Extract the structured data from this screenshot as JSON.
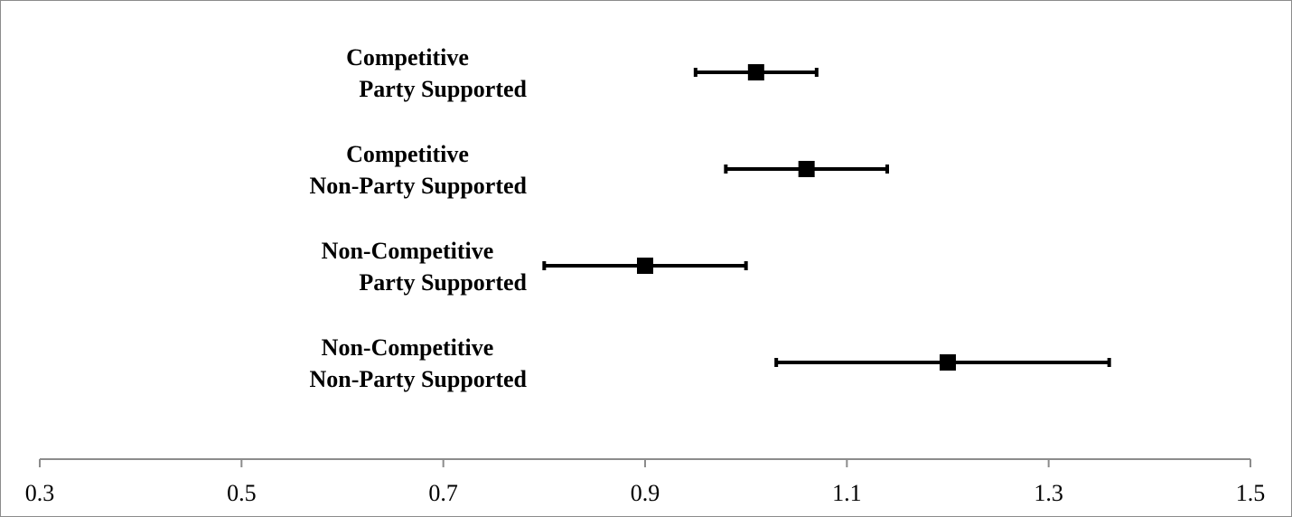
{
  "chart_data": {
    "type": "scatter",
    "title": "",
    "xlabel": "",
    "ylabel": "",
    "xlim": [
      0.3,
      1.5
    ],
    "x_ticks": [
      "0.3",
      "0.5",
      "0.7",
      "0.9",
      "1.1",
      "1.3",
      "1.5"
    ],
    "x_tick_values": [
      0.3,
      0.5,
      0.7,
      0.9,
      1.1,
      1.3,
      1.5
    ],
    "grid": false,
    "legend": "none",
    "marker": "square",
    "color": "#000000",
    "points": [
      {
        "label_line1": "Competitive",
        "label_line2": "Party Supported",
        "estimate": 1.01,
        "ci_low": 0.95,
        "ci_high": 1.07
      },
      {
        "label_line1": "Competitive",
        "label_line2": "Non-Party Supported",
        "estimate": 1.06,
        "ci_low": 0.98,
        "ci_high": 1.14
      },
      {
        "label_line1": "Non-Competitive",
        "label_line2": "Party Supported",
        "estimate": 0.9,
        "ci_low": 0.8,
        "ci_high": 1.0
      },
      {
        "label_line1": "Non-Competitive",
        "label_line2": "Non-Party Supported",
        "estimate": 1.2,
        "ci_low": 1.03,
        "ci_high": 1.36
      }
    ]
  }
}
